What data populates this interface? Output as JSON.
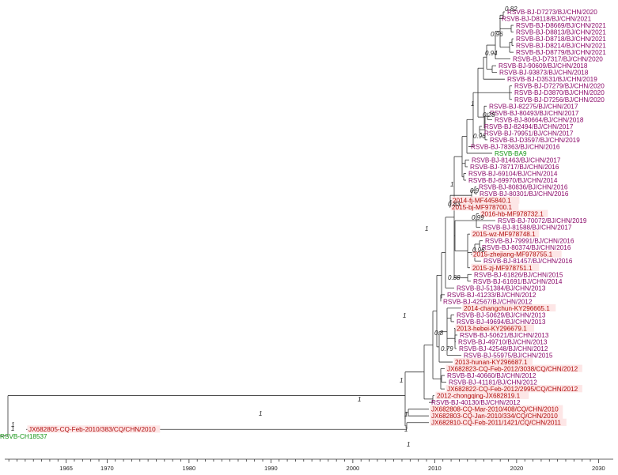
{
  "colors": {
    "purple": "#8b0a6a",
    "red": "#b00d0d",
    "green": "#149414",
    "branch": "#333333",
    "highlight": "#fde6e6"
  },
  "axis": {
    "min": 1957,
    "max": 2030,
    "ticks": [
      1965,
      1970,
      1980,
      1990,
      2000,
      2010,
      2020,
      2030
    ]
  },
  "taxa": [
    {
      "label": "RSVB-BJ-D7273/BJ/CHN/2020",
      "color": "purple"
    },
    {
      "label": "RSVB-BJ-D8118/BJ/CHN/2021",
      "color": "purple"
    },
    {
      "label": "RSVB-BJ-D8669/BJ/CHN/2021",
      "color": "purple"
    },
    {
      "label": "RSVB-BJ-D8813/BJ/CHN/2021",
      "color": "purple"
    },
    {
      "label": "RSVB-BJ-D8718/BJ/CHN/2021",
      "color": "purple"
    },
    {
      "label": "RSVB-BJ-D8214/BJ/CHN/2021",
      "color": "purple"
    },
    {
      "label": "RSVB-BJ-D8779/BJ/CHN/2021",
      "color": "purple"
    },
    {
      "label": "RSVB-BJ-D7317/BJ/CHN/2020",
      "color": "purple"
    },
    {
      "label": "RSVB-BJ-90609/BJ/CHN/2018",
      "color": "purple"
    },
    {
      "label": "RSVB-BJ-93873/BJ/CHN/2018",
      "color": "purple"
    },
    {
      "label": "RSVB-BJ-D3531/BJ/CHN/2019",
      "color": "purple"
    },
    {
      "label": "RSVB-BJ-D7279/BJ/CHN/2020",
      "color": "purple"
    },
    {
      "label": "RSVB-BJ-D3870/BJ/CHN/2020",
      "color": "purple"
    },
    {
      "label": "RSVB-BJ-D7256/BJ/CHN/2020",
      "color": "purple"
    },
    {
      "label": "RSVB-BJ-82275/BJ/CHN/2017",
      "color": "purple"
    },
    {
      "label": "RSVB-BJ-80493/BJ/CHN/2017",
      "color": "purple"
    },
    {
      "label": "RSVB-BJ-80664/BJ/CHN/2018",
      "color": "purple"
    },
    {
      "label": "RSVB-BJ-82494/BJ/CHN/2017",
      "color": "purple"
    },
    {
      "label": "RSVB-BJ-79951/BJ/CHN/2017",
      "color": "purple"
    },
    {
      "label": "RSVB-BJ-D3597/BJ/CHN/2019",
      "color": "purple"
    },
    {
      "label": "RSVB-BJ-78363/BJ/CHN/2016",
      "color": "purple"
    },
    {
      "label": "RSVB-BA9",
      "color": "green"
    },
    {
      "label": "RSVB-BJ-81463/BJ/CHN/2017",
      "color": "purple"
    },
    {
      "label": "RSVB-BJ-78717/BJ/CHN/2016",
      "color": "purple"
    },
    {
      "label": "RSVB-BJ-69104/BJ/CHN/2014",
      "color": "purple"
    },
    {
      "label": "RSVB-BJ-69970/BJ/CHN/2014",
      "color": "purple"
    },
    {
      "label": "RSVB-BJ-80836/BJ/CHN/2016",
      "color": "purple"
    },
    {
      "label": "RSVB-BJ-80301/BJ/CHN/2016",
      "color": "purple"
    },
    {
      "label": "2014-fj-MF445840.1",
      "color": "red"
    },
    {
      "label": "2015-bj-MF978700.1",
      "color": "red"
    },
    {
      "label": "2016-hb-MF978732.1",
      "color": "red"
    },
    {
      "label": "RSVB-BJ-70072/BJ/CHN/2019",
      "color": "purple"
    },
    {
      "label": "RSVB-BJ-81588/BJ/CHN/2017",
      "color": "purple"
    },
    {
      "label": "2015-wz-MF978748.1",
      "color": "red"
    },
    {
      "label": "RSVB-BJ-79991/BJ/CHN/2016",
      "color": "purple"
    },
    {
      "label": "RSVB-BJ-80374/BJ/CHN/2016",
      "color": "purple"
    },
    {
      "label": "2015-zhejiang-MF978755.1",
      "color": "red"
    },
    {
      "label": "RSVB-BJ-81457/BJ/CHN/2016",
      "color": "purple"
    },
    {
      "label": "2015-zj-MF978751.1",
      "color": "red"
    },
    {
      "label": "RSVB-BJ-61826/BJ/CHN/2015",
      "color": "purple"
    },
    {
      "label": "RSVB-BJ-61691/BJ/CHN/2014",
      "color": "purple"
    },
    {
      "label": "RSVB-BJ-51384/BJ/CHN/2013",
      "color": "purple"
    },
    {
      "label": "RSVB-BJ-41233/BJ/CHN/2012",
      "color": "purple"
    },
    {
      "label": "RSVB-BJ-42567/BJ/CHN/2012",
      "color": "purple"
    },
    {
      "label": "2014-changchun-KY296665.1",
      "color": "red"
    },
    {
      "label": "RSVB-BJ-50629/BJ/CHN/2013",
      "color": "purple"
    },
    {
      "label": "RSVB-BJ-49694/BJ/CHN/2013",
      "color": "purple"
    },
    {
      "label": "2013-hebei-KY296679.1",
      "color": "red"
    },
    {
      "label": "RSVB-BJ-50621/BJ/CHN/2013",
      "color": "purple"
    },
    {
      "label": "RSVB-BJ-49710/BJ/CHN/2013",
      "color": "purple"
    },
    {
      "label": "RSVB-BJ-42548/BJ/CHN/2012",
      "color": "purple"
    },
    {
      "label": "RSVB-BJ-55975/BJ/CHN/2015",
      "color": "purple"
    },
    {
      "label": "2013-hunan-KY296687.1",
      "color": "red"
    },
    {
      "label": "JX682823-CQ-Feb-2012/3038/CQ/CHN/2012",
      "color": "red"
    },
    {
      "label": "RSVB-BJ-40660/BJ/CHN/2012",
      "color": "purple"
    },
    {
      "label": "RSVB-BJ-41181/BJ/CHN/2012",
      "color": "purple"
    },
    {
      "label": "JX682822-CQ-Feb-2012/2995/CQ/CHN/2012",
      "color": "red"
    },
    {
      "label": "2012-chongqing-JX682819.1",
      "color": "red"
    },
    {
      "label": "RSVB-BJ-40130/BJ/CHN/2012",
      "color": "purple"
    },
    {
      "label": "JX682808-CQ-Mar-2010/408/CQ/CHN/2010",
      "color": "red"
    },
    {
      "label": "JX682803-CQ-Jan-2010/334/CQ/CHN/2010",
      "color": "red"
    },
    {
      "label": "JX682810-CQ-Feb-2011/1421/CQ/CHN/2011",
      "color": "red"
    },
    {
      "label": "JX682805-CQ-Feb-2010/383/CQ/CHN/2010",
      "color": "red"
    },
    {
      "label": "RSVB-CH18537",
      "color": "green"
    }
  ],
  "support": [
    "0.82",
    "0.96",
    "0.94",
    "1",
    "0.28",
    "0.96",
    "1",
    "0.9",
    "0.83",
    "0.99",
    "1",
    "0.96",
    "0.88",
    "1",
    "0.8",
    "0.79",
    "1",
    "1",
    "1",
    "1",
    "1",
    "1",
    "1",
    "1"
  ]
}
